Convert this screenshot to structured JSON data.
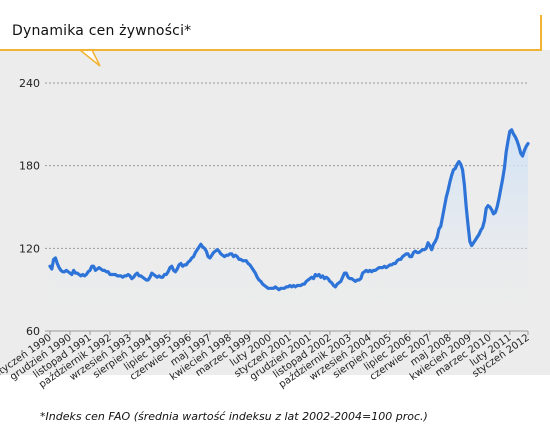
{
  "title": "Dynamika cen żywności*",
  "footnote": "*Indeks cen FAO (średnia wartość indeksu z lat 2002-2004=100 proc.)",
  "colors": {
    "line": "#2e74d8",
    "fill_top": "#cfe2f7",
    "grid": "#9a9a9a",
    "accent": "#f2b233",
    "bg": "#ececec"
  },
  "chart_data": {
    "type": "area",
    "title": "Dynamika cen żywności*",
    "ylim": [
      60,
      240
    ],
    "yticks": [
      60,
      120,
      180,
      240
    ],
    "grid": "horizontal dotted",
    "x_tick_labels": [
      "styczeń 1990",
      "grudzień 1990",
      "listopad 1991",
      "październik 1992",
      "wrzesień 1993",
      "sierpień 1994",
      "lipiec 1995",
      "czerwiec 1996",
      "maj 1997",
      "kwiecień 1998",
      "marzec 1999",
      "luty 2000",
      "styczeń 2001",
      "grudzień 2001",
      "listopad 2002",
      "październik 2003",
      "wrzesień 2004",
      "sierpień 2005",
      "lipiec 2006",
      "czerwiec 2007",
      "maj 2008",
      "kwiecień 2009",
      "marzec 2010",
      "luty 2011",
      "styczeń 2012"
    ],
    "series": [
      {
        "values": [
          107,
          105,
          112,
          113,
          109,
          106,
          104,
          103,
          103,
          104,
          103,
          102,
          101,
          104,
          102,
          102,
          101,
          100,
          101,
          100,
          101,
          103,
          104,
          107,
          107,
          104,
          105,
          106,
          105,
          104,
          104,
          103,
          103,
          101,
          101,
          101,
          101,
          100,
          100,
          100,
          99,
          100,
          100,
          101,
          100,
          98,
          99,
          101,
          102,
          100,
          100,
          99,
          98,
          97,
          97,
          99,
          102,
          101,
          100,
          99,
          100,
          99,
          99,
          101,
          101,
          103,
          106,
          107,
          104,
          103,
          105,
          108,
          109,
          107,
          108,
          108,
          110,
          111,
          113,
          114,
          117,
          119,
          121,
          123,
          121,
          120,
          118,
          114,
          113,
          115,
          117,
          118,
          119,
          118,
          116,
          115,
          114,
          115,
          115,
          116,
          116,
          114,
          115,
          114,
          112,
          112,
          111,
          111,
          111,
          109,
          108,
          106,
          104,
          102,
          99,
          97,
          96,
          94,
          93,
          92,
          91,
          91,
          91,
          91,
          92,
          91,
          90,
          91,
          91,
          91,
          92,
          92,
          93,
          92,
          93,
          92,
          93,
          93,
          93,
          94,
          94,
          96,
          97,
          98,
          99,
          98,
          101,
          100,
          101,
          99,
          100,
          98,
          99,
          98,
          96,
          95,
          93,
          92,
          94,
          95,
          96,
          99,
          102,
          102,
          99,
          98,
          98,
          97,
          96,
          97,
          97,
          98,
          102,
          103,
          104,
          103,
          104,
          103,
          104,
          104,
          105,
          106,
          106,
          106,
          107,
          106,
          107,
          108,
          108,
          109,
          109,
          111,
          112,
          112,
          114,
          115,
          116,
          116,
          114,
          114,
          117,
          118,
          117,
          117,
          118,
          119,
          119,
          120,
          124,
          122,
          119,
          123,
          125,
          128,
          134,
          136,
          143,
          150,
          157,
          162,
          168,
          173,
          177,
          178,
          181,
          183,
          181,
          177,
          166,
          150,
          137,
          125,
          122,
          124,
          126,
          128,
          130,
          133,
          135,
          140,
          149,
          151,
          150,
          148,
          145,
          146,
          150,
          156,
          163,
          170,
          178,
          190,
          198,
          205,
          206,
          203,
          201,
          198,
          194,
          189,
          187,
          191,
          194,
          196
        ]
      }
    ]
  }
}
